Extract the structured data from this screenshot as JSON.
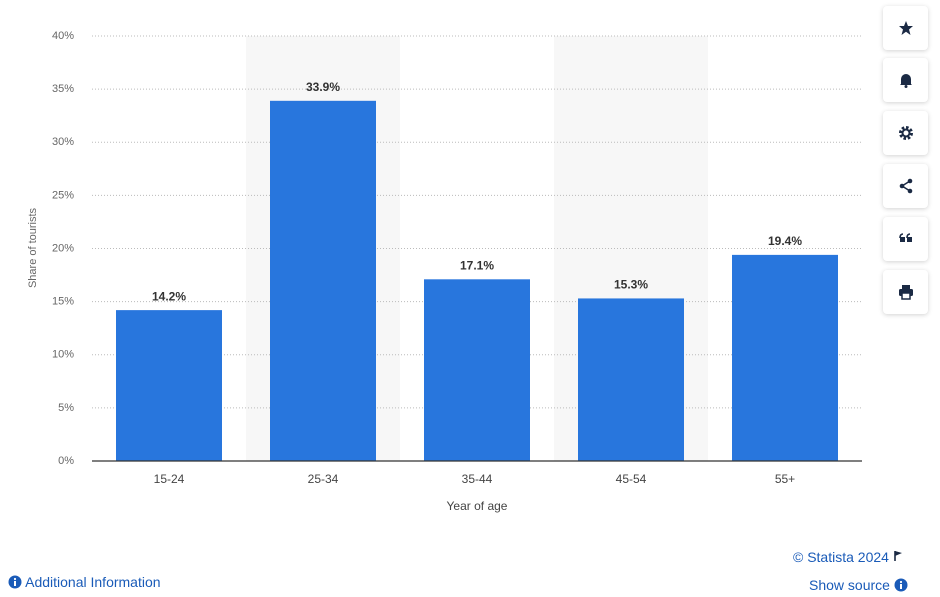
{
  "chart_data": {
    "type": "bar",
    "categories": [
      "15-24",
      "25-34",
      "35-44",
      "45-54",
      "55+"
    ],
    "values": [
      14.2,
      33.9,
      17.1,
      15.3,
      19.4
    ],
    "value_labels": [
      "14.2%",
      "33.9%",
      "17.1%",
      "15.3%",
      "19.4%"
    ],
    "color": "#2876dd",
    "x_label": "Year of age",
    "y_label": "Share of tourists",
    "ylim": [
      0,
      40
    ],
    "yticks": [
      {
        "value": 0,
        "label": "0%"
      },
      {
        "value": 5,
        "label": "5%"
      },
      {
        "value": 10,
        "label": "10%"
      },
      {
        "value": 15,
        "label": "15%"
      },
      {
        "value": 20,
        "label": "20%"
      },
      {
        "value": 25,
        "label": "25%"
      },
      {
        "value": 30,
        "label": "30%"
      },
      {
        "value": 35,
        "label": "35%"
      },
      {
        "value": 40,
        "label": "40%"
      }
    ],
    "grid": true
  },
  "footer": {
    "copyright": "© Statista 2024",
    "additional_info": "Additional Information",
    "show_source": "Show source"
  }
}
